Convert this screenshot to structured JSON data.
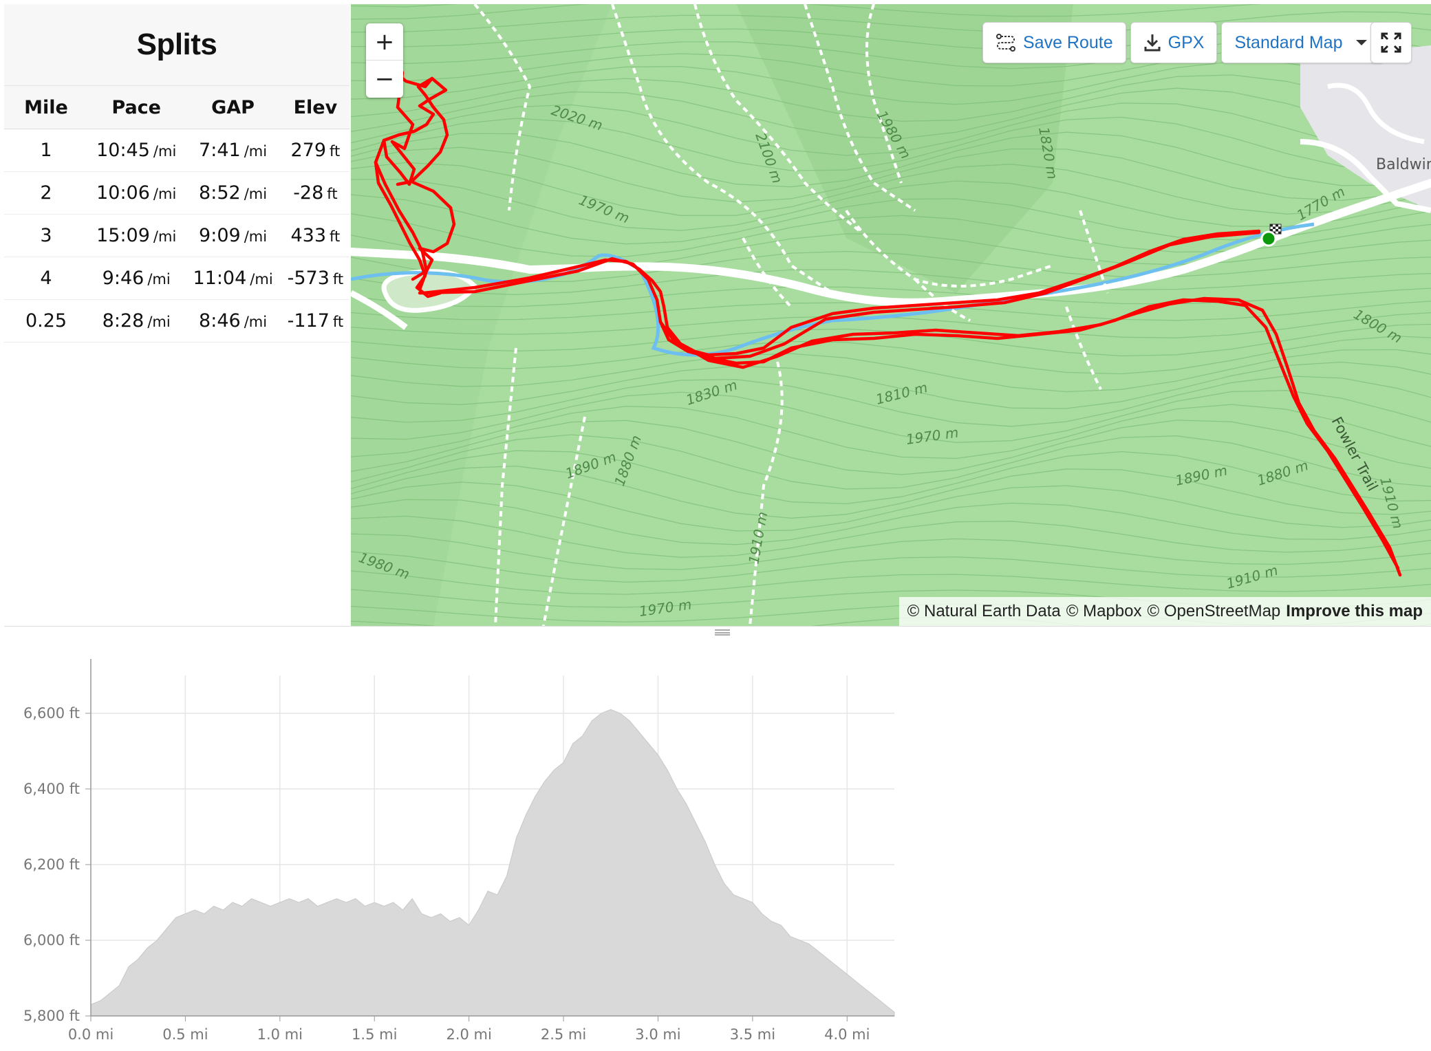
{
  "splits": {
    "title": "Splits",
    "columns": [
      "Mile",
      "Pace",
      "GAP",
      "Elev"
    ],
    "rows": [
      {
        "mile": "1",
        "pace": "10:45",
        "pace_unit": "/mi",
        "gap": "7:41",
        "gap_unit": "/mi",
        "elev": "279",
        "elev_unit": "ft"
      },
      {
        "mile": "2",
        "pace": "10:06",
        "pace_unit": "/mi",
        "gap": "8:52",
        "gap_unit": "/mi",
        "elev": "-28",
        "elev_unit": "ft"
      },
      {
        "mile": "3",
        "pace": "15:09",
        "pace_unit": "/mi",
        "gap": "9:09",
        "gap_unit": "/mi",
        "elev": "433",
        "elev_unit": "ft"
      },
      {
        "mile": "4",
        "pace": "9:46",
        "pace_unit": "/mi",
        "gap": "11:04",
        "gap_unit": "/mi",
        "elev": "-573",
        "elev_unit": "ft"
      },
      {
        "mile": "0.25",
        "pace": "8:28",
        "pace_unit": "/mi",
        "gap": "8:46",
        "gap_unit": "/mi",
        "elev": "-117",
        "elev_unit": "ft"
      }
    ]
  },
  "map": {
    "zoom_in": "+",
    "zoom_out": "−",
    "toolbar": {
      "save_route": "Save Route",
      "gpx": "GPX",
      "map_style": "Standard Map"
    },
    "attribution": {
      "natural_earth": "© Natural Earth Data",
      "mapbox": "© Mapbox",
      "osm": "© OpenStreetMap",
      "improve": "Improve this map"
    },
    "place_label": "Baldwin",
    "trail_label": "Fowler Trail",
    "contour_labels": [
      "2020 m",
      "1970 m",
      "2100 m",
      "1980 m",
      "1820 m",
      "1770 m",
      "1800 m",
      "1830 m",
      "1810 m",
      "1890 m",
      "1880 m",
      "1910 m",
      "1970 m",
      "1890 m",
      "1910 m",
      "1880 m",
      "1910 m",
      "1980 m",
      "1970 m"
    ],
    "colors": {
      "terrain": "#a9dda0",
      "route": "#ff0000",
      "start_marker": "#0c9a0c",
      "link": "#1f73c4"
    }
  },
  "chart_data": {
    "type": "area",
    "title": "",
    "xlabel": "",
    "ylabel": "",
    "x_unit": "mi",
    "y_unit": "ft",
    "xlim": [
      0,
      4.25
    ],
    "ylim": [
      5800,
      6700
    ],
    "x_ticks": [
      "0.0 mi",
      "0.5 mi",
      "1.0 mi",
      "1.5 mi",
      "2.0 mi",
      "2.5 mi",
      "3.0 mi",
      "3.5 mi",
      "4.0 mi"
    ],
    "y_ticks": [
      "5,800 ft",
      "6,000 ft",
      "6,200 ft",
      "6,400 ft",
      "6,600 ft"
    ],
    "grid": true,
    "fill_color": "#d9d9d9",
    "series": [
      {
        "x": [
          0.0,
          0.05,
          0.1,
          0.15,
          0.2,
          0.25,
          0.3,
          0.35,
          0.4,
          0.45,
          0.5,
          0.55,
          0.6,
          0.65,
          0.7,
          0.75,
          0.8,
          0.85,
          0.9,
          0.95,
          1.0,
          1.05,
          1.1,
          1.15,
          1.2,
          1.25,
          1.3,
          1.35,
          1.4,
          1.45,
          1.5,
          1.55,
          1.6,
          1.65,
          1.7,
          1.75,
          1.8,
          1.85,
          1.9,
          1.95,
          2.0,
          2.05,
          2.1,
          2.15,
          2.2,
          2.25,
          2.3,
          2.35,
          2.4,
          2.45,
          2.5,
          2.55,
          2.6,
          2.65,
          2.7,
          2.75,
          2.8,
          2.85,
          2.9,
          2.95,
          3.0,
          3.05,
          3.1,
          3.15,
          3.2,
          3.25,
          3.3,
          3.35,
          3.4,
          3.45,
          3.5,
          3.55,
          3.6,
          3.65,
          3.7,
          3.75,
          3.8,
          3.85,
          3.9,
          3.95,
          4.0,
          4.05,
          4.1,
          4.15,
          4.2,
          4.25
        ],
        "y": [
          5830,
          5840,
          5860,
          5880,
          5930,
          5950,
          5980,
          6000,
          6030,
          6060,
          6070,
          6080,
          6070,
          6090,
          6080,
          6100,
          6090,
          6110,
          6100,
          6090,
          6100,
          6110,
          6100,
          6110,
          6090,
          6100,
          6110,
          6100,
          6110,
          6090,
          6100,
          6090,
          6100,
          6080,
          6110,
          6070,
          6060,
          6070,
          6050,
          6060,
          6040,
          6080,
          6130,
          6120,
          6170,
          6270,
          6330,
          6380,
          6420,
          6450,
          6470,
          6520,
          6540,
          6580,
          6600,
          6610,
          6600,
          6580,
          6550,
          6520,
          6490,
          6450,
          6400,
          6360,
          6310,
          6260,
          6200,
          6150,
          6120,
          6110,
          6100,
          6070,
          6050,
          6040,
          6010,
          6000,
          5990,
          5970,
          5950,
          5930,
          5910,
          5890,
          5870,
          5850,
          5830,
          5810
        ]
      }
    ]
  }
}
